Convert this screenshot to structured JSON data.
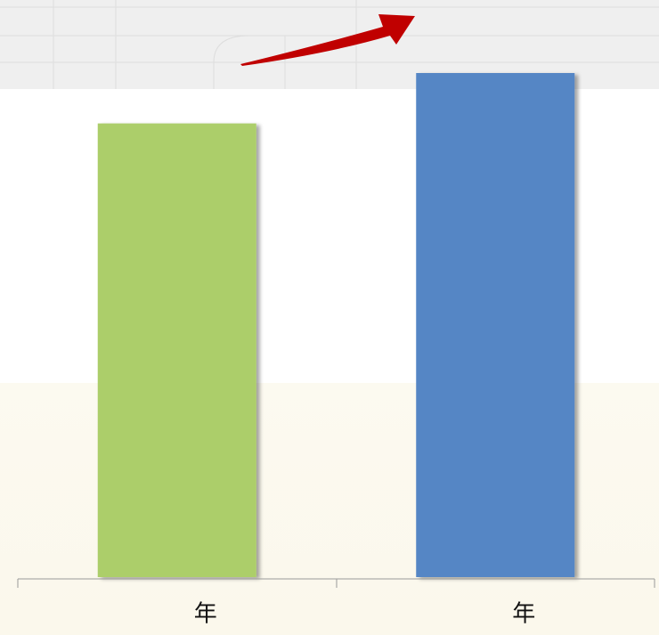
{
  "chart_data": {
    "type": "bar",
    "categories": [
      "年",
      "年"
    ],
    "values": [
      90,
      100
    ],
    "colors": [
      "#acce6a",
      "#5586c5"
    ],
    "ylim": [
      0,
      100
    ]
  }
}
